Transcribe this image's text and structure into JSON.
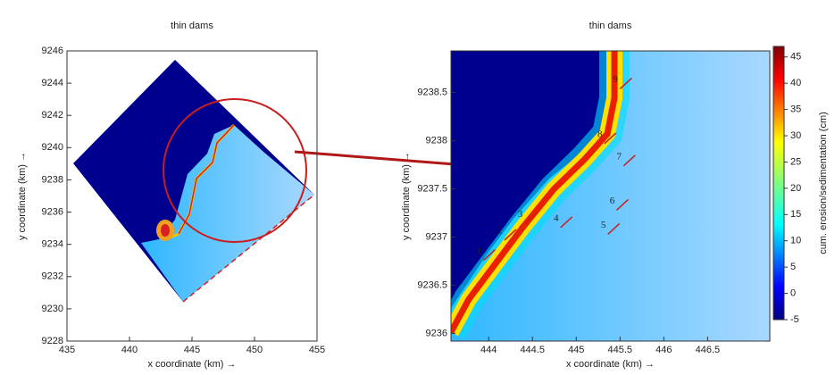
{
  "chart_data": [
    {
      "type": "heatmap",
      "title": "thin dams",
      "xlabel": "x coordinate (km) →",
      "ylabel": "y coordinate (km) →",
      "xlim": [
        435,
        455
      ],
      "xticks": [
        435,
        440,
        445,
        450,
        455
      ],
      "ylim": [
        9228,
        9246
      ],
      "yticks": [
        9228,
        9230,
        9232,
        9234,
        9236,
        9238,
        9240,
        9242,
        9244,
        9246
      ]
    },
    {
      "type": "heatmap",
      "title": "thin dams",
      "xlabel": "x coordinate (km) →",
      "ylabel": "y coordinate (km) →",
      "xlim": [
        443.57,
        447.21
      ],
      "xticks": [
        444,
        444.5,
        445,
        445.5,
        446,
        446.5
      ],
      "ylim": [
        9235.92,
        9238.93
      ],
      "yticks": [
        9236,
        9236.5,
        9237,
        9237.5,
        9238,
        9238.5
      ],
      "colorbar": {
        "label": "cum. erosion/sedimentation (cm)",
        "clim": [
          -5,
          47
        ],
        "ticks": [
          -5,
          0,
          5,
          10,
          15,
          20,
          25,
          30,
          35,
          40,
          45
        ]
      },
      "annotations": [
        {
          "text": "1",
          "x": 443.89,
          "y": 9236.85
        },
        {
          "text": "2",
          "x": 444.13,
          "y": 9237.06
        },
        {
          "text": "3",
          "x": 444.36,
          "y": 9237.23
        },
        {
          "text": "4",
          "x": 444.77,
          "y": 9237.19
        },
        {
          "text": "5",
          "x": 445.31,
          "y": 9237.12
        },
        {
          "text": "6",
          "x": 445.41,
          "y": 9237.37
        },
        {
          "text": "7",
          "x": 445.49,
          "y": 9237.83
        },
        {
          "text": "8",
          "x": 445.27,
          "y": 9238.06
        },
        {
          "text": "9",
          "x": 445.45,
          "y": 9238.63
        }
      ]
    }
  ]
}
